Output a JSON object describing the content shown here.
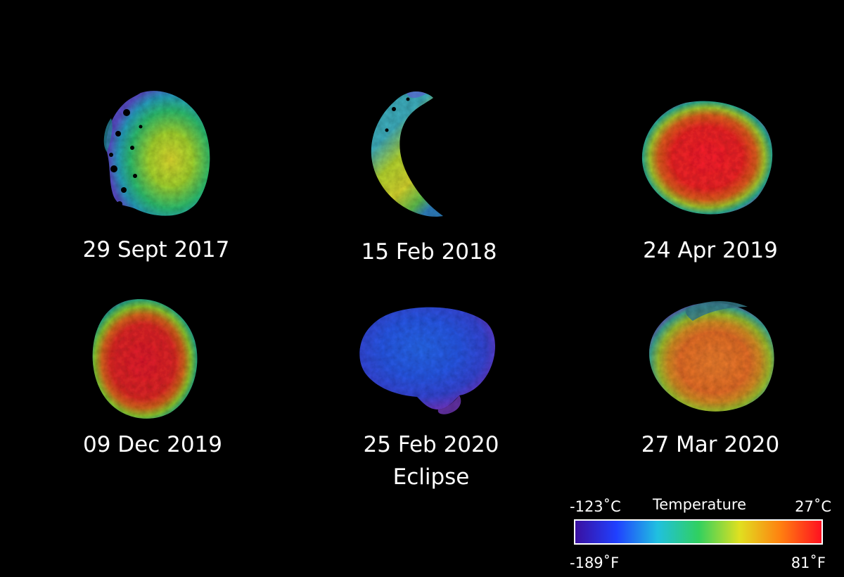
{
  "observations": [
    {
      "date": "29 Sept 2017"
    },
    {
      "date": "15 Feb 2018"
    },
    {
      "date": "24 Apr 2019"
    },
    {
      "date": "09 Dec 2019"
    },
    {
      "date": "25 Feb 2020",
      "note": "Eclipse"
    },
    {
      "date": "27 Mar 2020"
    }
  ],
  "legend": {
    "title": "Temperature",
    "min_celsius": "-123˚C",
    "max_celsius": "27˚C",
    "min_fahrenheit": "-189˚F",
    "max_fahrenheit": "81˚F",
    "colors": [
      "#3a10a0",
      "#2040ff",
      "#20c0e0",
      "#30d060",
      "#e0e020",
      "#ff8010",
      "#ff1020"
    ]
  }
}
